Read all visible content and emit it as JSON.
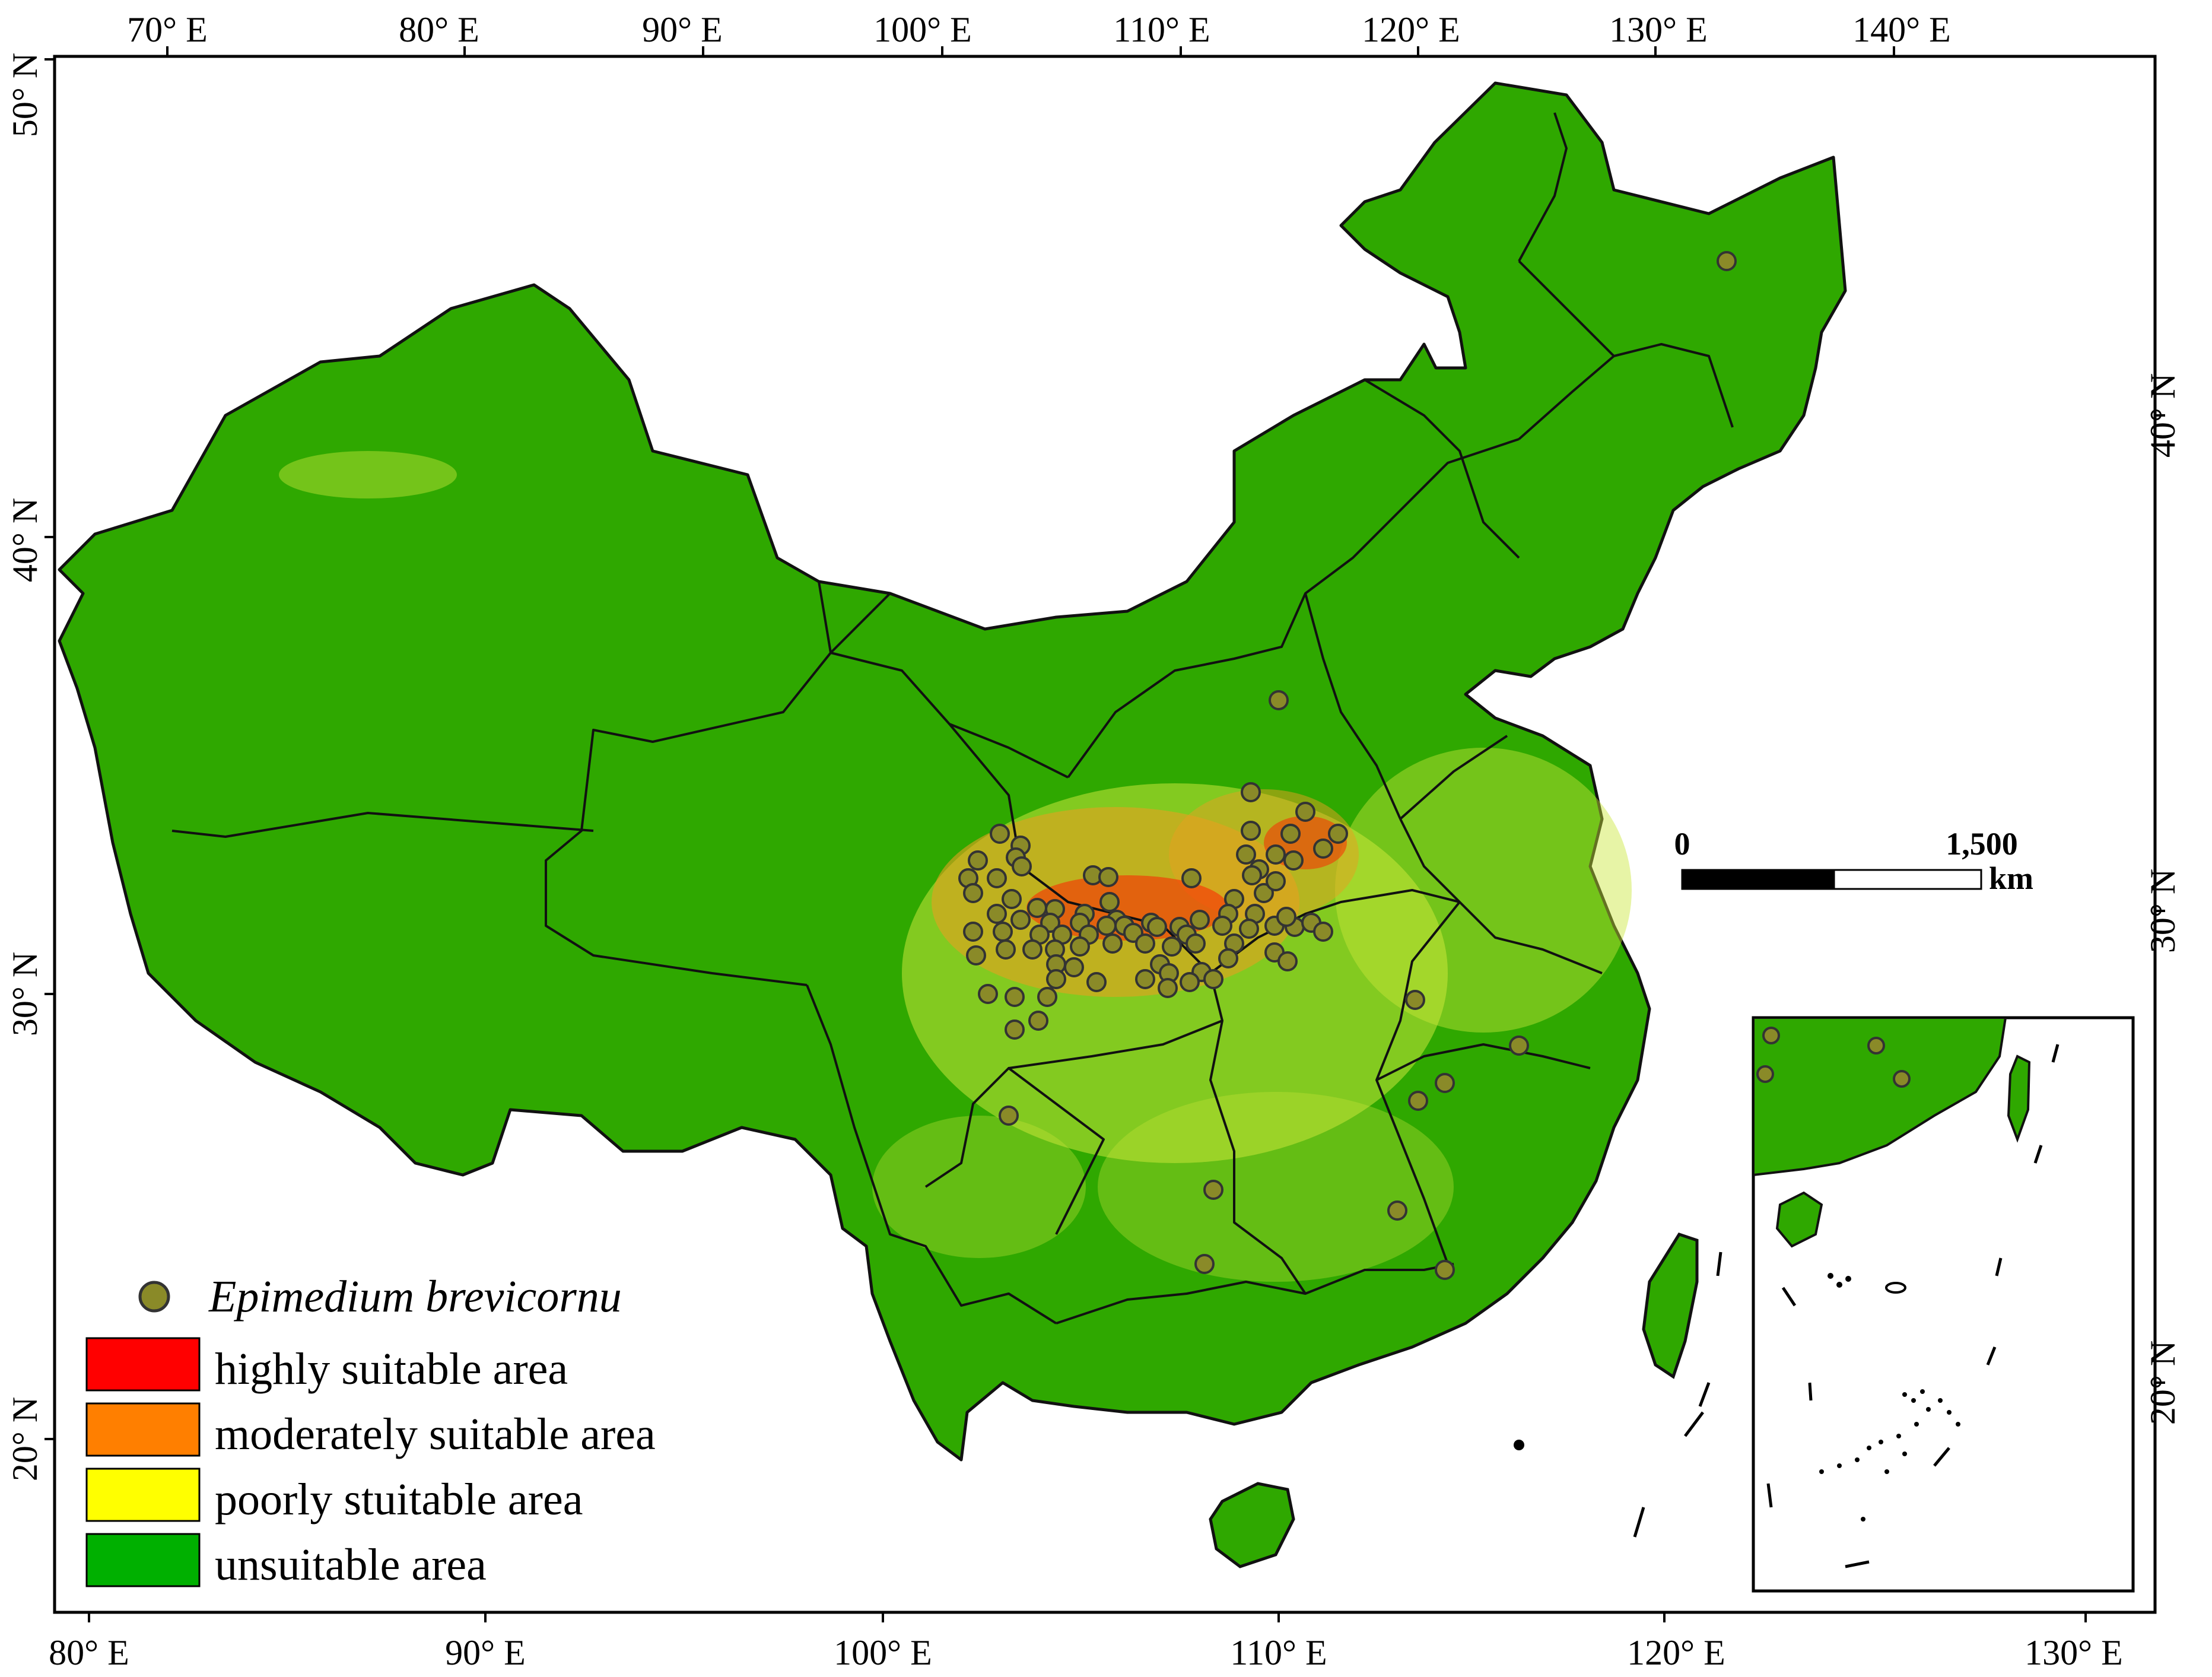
{
  "map": {
    "top_lon_labels": [
      "70° E",
      "80° E",
      "90° E",
      "100° E",
      "110° E",
      "120° E",
      "130° E",
      "140° E"
    ],
    "bottom_lon_labels": [
      "80° E",
      "90° E",
      "100° E",
      "110° E",
      "120° E",
      "130° E"
    ],
    "left_lat_labels": [
      "50° N",
      "40° N",
      "30° N",
      "20° N"
    ],
    "right_lat_labels": [
      "40° N",
      "30° N",
      "20° N"
    ],
    "scale_bar": {
      "start_label": "0",
      "end_label": "1,500",
      "unit": "km"
    },
    "legend": {
      "species": "Epimedium brevicornu",
      "classes": [
        {
          "label": "highly suitable area",
          "color": "#ff0000"
        },
        {
          "label": "moderately suitable area",
          "color": "#ff7f00"
        },
        {
          "label": "poorly stuitable area",
          "color": "#ffff00"
        },
        {
          "label": "unsuitable area",
          "color": "#00b000"
        }
      ]
    },
    "colors": {
      "land": "#2fa800",
      "border": "#111111",
      "point_fill": "#8a8a28",
      "point_stroke": "#333333",
      "mod": "#e8a020",
      "poor": "#c9e63a"
    }
  }
}
